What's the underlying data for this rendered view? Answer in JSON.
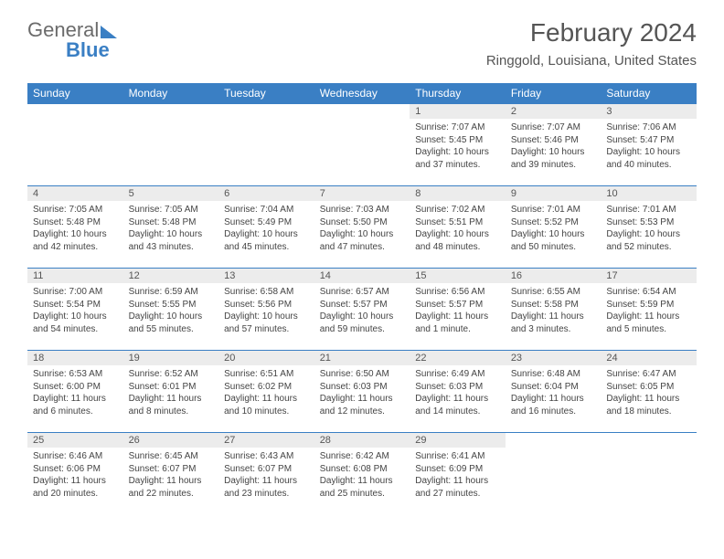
{
  "logo": {
    "word1": "General",
    "word2": "Blue"
  },
  "title": "February 2024",
  "location": "Ringgold, Louisiana, United States",
  "colors": {
    "accent": "#3a7fc4",
    "headerText": "#ffffff",
    "daynumBg": "#ececec",
    "text": "#444"
  },
  "daynames": [
    "Sunday",
    "Monday",
    "Tuesday",
    "Wednesday",
    "Thursday",
    "Friday",
    "Saturday"
  ],
  "weeks": [
    [
      {
        "blank": true
      },
      {
        "blank": true
      },
      {
        "blank": true
      },
      {
        "blank": true
      },
      {
        "n": "1",
        "sr": "Sunrise: 7:07 AM",
        "ss": "Sunset: 5:45 PM",
        "dl1": "Daylight: 10 hours",
        "dl2": "and 37 minutes."
      },
      {
        "n": "2",
        "sr": "Sunrise: 7:07 AM",
        "ss": "Sunset: 5:46 PM",
        "dl1": "Daylight: 10 hours",
        "dl2": "and 39 minutes."
      },
      {
        "n": "3",
        "sr": "Sunrise: 7:06 AM",
        "ss": "Sunset: 5:47 PM",
        "dl1": "Daylight: 10 hours",
        "dl2": "and 40 minutes."
      }
    ],
    [
      {
        "n": "4",
        "sr": "Sunrise: 7:05 AM",
        "ss": "Sunset: 5:48 PM",
        "dl1": "Daylight: 10 hours",
        "dl2": "and 42 minutes."
      },
      {
        "n": "5",
        "sr": "Sunrise: 7:05 AM",
        "ss": "Sunset: 5:48 PM",
        "dl1": "Daylight: 10 hours",
        "dl2": "and 43 minutes."
      },
      {
        "n": "6",
        "sr": "Sunrise: 7:04 AM",
        "ss": "Sunset: 5:49 PM",
        "dl1": "Daylight: 10 hours",
        "dl2": "and 45 minutes."
      },
      {
        "n": "7",
        "sr": "Sunrise: 7:03 AM",
        "ss": "Sunset: 5:50 PM",
        "dl1": "Daylight: 10 hours",
        "dl2": "and 47 minutes."
      },
      {
        "n": "8",
        "sr": "Sunrise: 7:02 AM",
        "ss": "Sunset: 5:51 PM",
        "dl1": "Daylight: 10 hours",
        "dl2": "and 48 minutes."
      },
      {
        "n": "9",
        "sr": "Sunrise: 7:01 AM",
        "ss": "Sunset: 5:52 PM",
        "dl1": "Daylight: 10 hours",
        "dl2": "and 50 minutes."
      },
      {
        "n": "10",
        "sr": "Sunrise: 7:01 AM",
        "ss": "Sunset: 5:53 PM",
        "dl1": "Daylight: 10 hours",
        "dl2": "and 52 minutes."
      }
    ],
    [
      {
        "n": "11",
        "sr": "Sunrise: 7:00 AM",
        "ss": "Sunset: 5:54 PM",
        "dl1": "Daylight: 10 hours",
        "dl2": "and 54 minutes."
      },
      {
        "n": "12",
        "sr": "Sunrise: 6:59 AM",
        "ss": "Sunset: 5:55 PM",
        "dl1": "Daylight: 10 hours",
        "dl2": "and 55 minutes."
      },
      {
        "n": "13",
        "sr": "Sunrise: 6:58 AM",
        "ss": "Sunset: 5:56 PM",
        "dl1": "Daylight: 10 hours",
        "dl2": "and 57 minutes."
      },
      {
        "n": "14",
        "sr": "Sunrise: 6:57 AM",
        "ss": "Sunset: 5:57 PM",
        "dl1": "Daylight: 10 hours",
        "dl2": "and 59 minutes."
      },
      {
        "n": "15",
        "sr": "Sunrise: 6:56 AM",
        "ss": "Sunset: 5:57 PM",
        "dl1": "Daylight: 11 hours",
        "dl2": "and 1 minute."
      },
      {
        "n": "16",
        "sr": "Sunrise: 6:55 AM",
        "ss": "Sunset: 5:58 PM",
        "dl1": "Daylight: 11 hours",
        "dl2": "and 3 minutes."
      },
      {
        "n": "17",
        "sr": "Sunrise: 6:54 AM",
        "ss": "Sunset: 5:59 PM",
        "dl1": "Daylight: 11 hours",
        "dl2": "and 5 minutes."
      }
    ],
    [
      {
        "n": "18",
        "sr": "Sunrise: 6:53 AM",
        "ss": "Sunset: 6:00 PM",
        "dl1": "Daylight: 11 hours",
        "dl2": "and 6 minutes."
      },
      {
        "n": "19",
        "sr": "Sunrise: 6:52 AM",
        "ss": "Sunset: 6:01 PM",
        "dl1": "Daylight: 11 hours",
        "dl2": "and 8 minutes."
      },
      {
        "n": "20",
        "sr": "Sunrise: 6:51 AM",
        "ss": "Sunset: 6:02 PM",
        "dl1": "Daylight: 11 hours",
        "dl2": "and 10 minutes."
      },
      {
        "n": "21",
        "sr": "Sunrise: 6:50 AM",
        "ss": "Sunset: 6:03 PM",
        "dl1": "Daylight: 11 hours",
        "dl2": "and 12 minutes."
      },
      {
        "n": "22",
        "sr": "Sunrise: 6:49 AM",
        "ss": "Sunset: 6:03 PM",
        "dl1": "Daylight: 11 hours",
        "dl2": "and 14 minutes."
      },
      {
        "n": "23",
        "sr": "Sunrise: 6:48 AM",
        "ss": "Sunset: 6:04 PM",
        "dl1": "Daylight: 11 hours",
        "dl2": "and 16 minutes."
      },
      {
        "n": "24",
        "sr": "Sunrise: 6:47 AM",
        "ss": "Sunset: 6:05 PM",
        "dl1": "Daylight: 11 hours",
        "dl2": "and 18 minutes."
      }
    ],
    [
      {
        "n": "25",
        "sr": "Sunrise: 6:46 AM",
        "ss": "Sunset: 6:06 PM",
        "dl1": "Daylight: 11 hours",
        "dl2": "and 20 minutes."
      },
      {
        "n": "26",
        "sr": "Sunrise: 6:45 AM",
        "ss": "Sunset: 6:07 PM",
        "dl1": "Daylight: 11 hours",
        "dl2": "and 22 minutes."
      },
      {
        "n": "27",
        "sr": "Sunrise: 6:43 AM",
        "ss": "Sunset: 6:07 PM",
        "dl1": "Daylight: 11 hours",
        "dl2": "and 23 minutes."
      },
      {
        "n": "28",
        "sr": "Sunrise: 6:42 AM",
        "ss": "Sunset: 6:08 PM",
        "dl1": "Daylight: 11 hours",
        "dl2": "and 25 minutes."
      },
      {
        "n": "29",
        "sr": "Sunrise: 6:41 AM",
        "ss": "Sunset: 6:09 PM",
        "dl1": "Daylight: 11 hours",
        "dl2": "and 27 minutes."
      },
      {
        "blank": true
      },
      {
        "blank": true
      }
    ]
  ]
}
